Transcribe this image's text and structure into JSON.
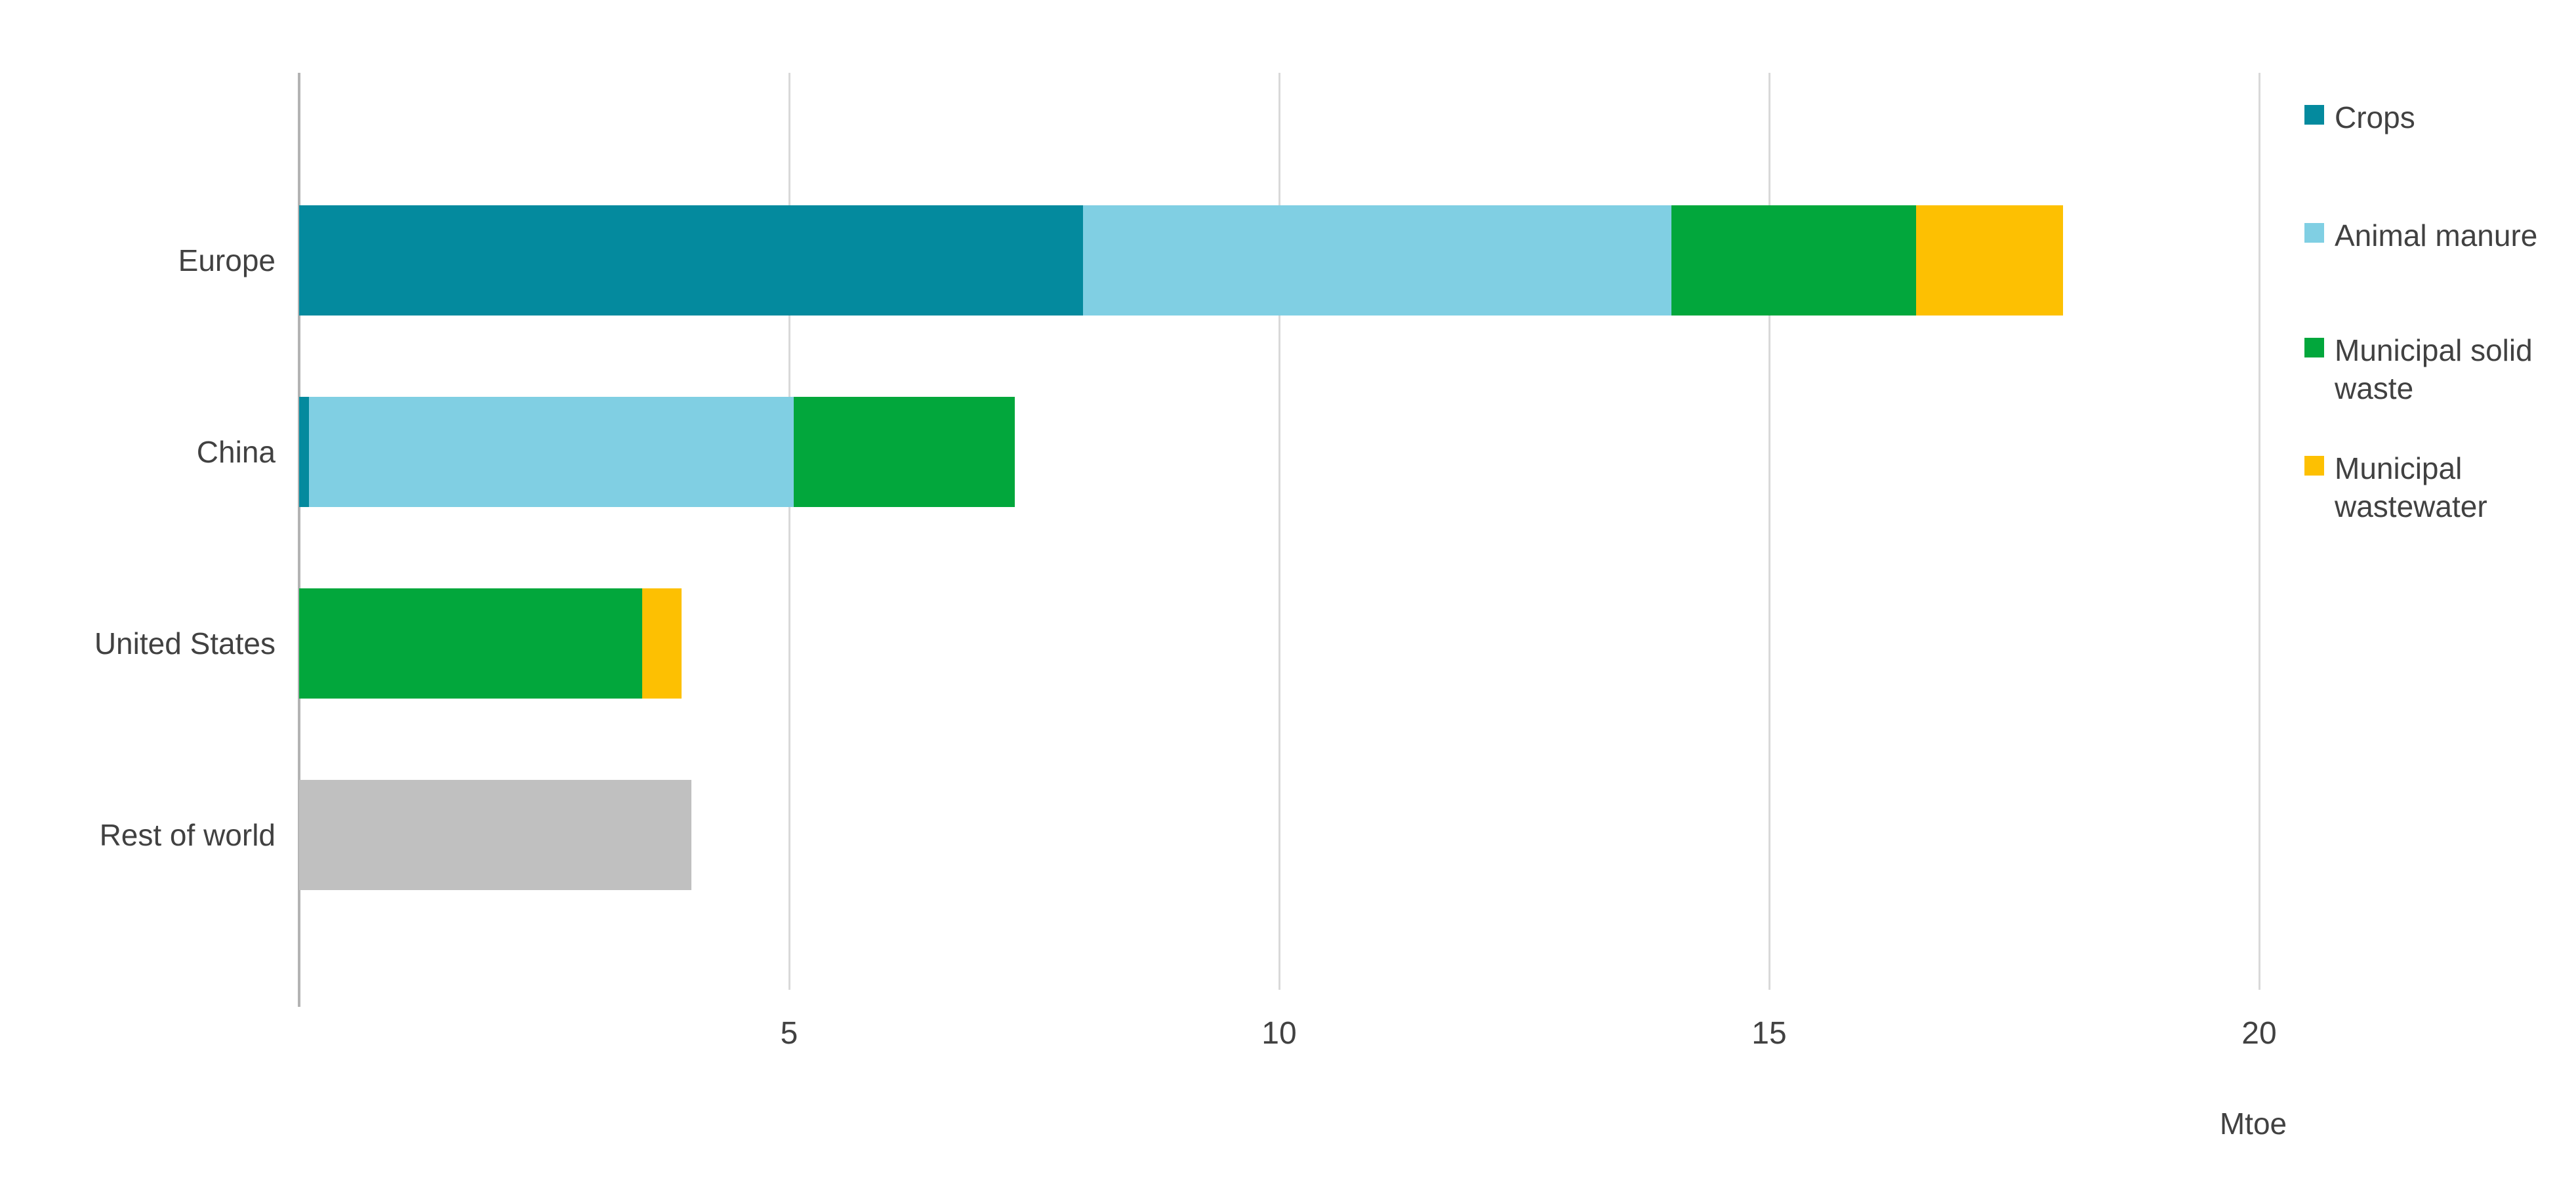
{
  "chart_data": {
    "type": "bar",
    "orientation": "horizontal",
    "stacked": true,
    "title": "",
    "xlabel": "Mtoe",
    "ylabel": "",
    "xlim": [
      0,
      23.2
    ],
    "x_ticks": [
      5,
      10,
      15,
      20
    ],
    "x_tick_labels": [
      "5",
      "10",
      "15",
      "20"
    ],
    "grid": true,
    "legend_position": "right",
    "categories": [
      "Europe",
      "China",
      "United States",
      "Rest of world"
    ],
    "series": [
      {
        "name": "Crops",
        "color": "#048a9e",
        "values": [
          8.0,
          0.1,
          0,
          0
        ]
      },
      {
        "name": "Animal manure",
        "color": "#80cfe3",
        "values": [
          6.0,
          4.95,
          0,
          0
        ]
      },
      {
        "name": "Municipal solid waste",
        "color": "#02a73c",
        "values": [
          2.5,
          2.25,
          3.5,
          0
        ]
      },
      {
        "name": "Municipal wastewater",
        "color": "#fdc002",
        "values": [
          1.5,
          0,
          0.4,
          0
        ]
      }
    ],
    "unlabeled_bars": [
      {
        "category": "Rest of world",
        "value": 4.0,
        "color": "#c0c0c0"
      }
    ],
    "totals": {
      "Europe": 18.0,
      "China": 7.3,
      "United States": 3.9,
      "Rest of world": 4.0
    },
    "colors": {
      "gridline": "#d9d9d9",
      "axis": "#b3b3b3",
      "text": "#414141"
    }
  },
  "legend": {
    "items": [
      {
        "label": "Crops",
        "color": "#048a9e"
      },
      {
        "label": "Animal manure",
        "color": "#80cfe3"
      },
      {
        "label": "Municipal solid waste",
        "color": "#02a73c"
      },
      {
        "label": "Municipal wastewater",
        "color": "#fdc002"
      }
    ]
  },
  "axis": {
    "unit_label": "Mtoe"
  }
}
